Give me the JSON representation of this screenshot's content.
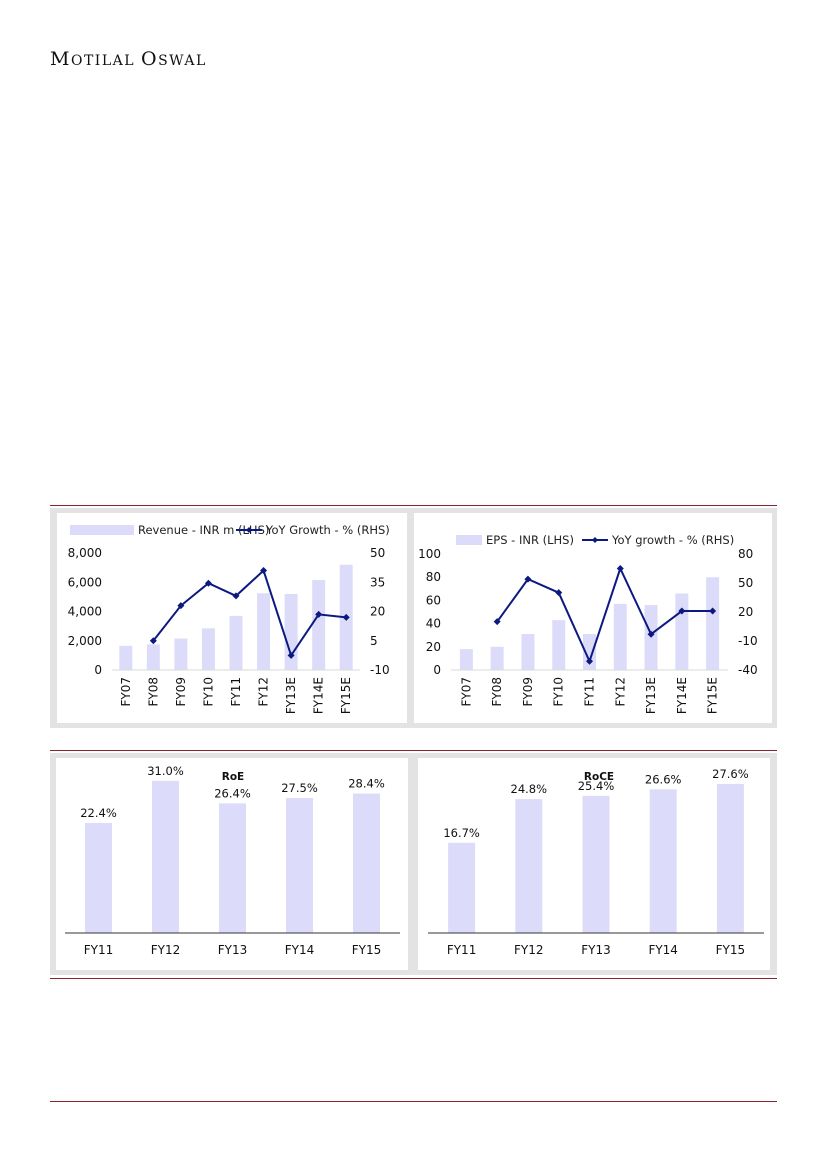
{
  "header": {
    "brand_initial_1": "M",
    "brand_rest_1": "OTILAL",
    "brand_initial_2": "O",
    "brand_rest_2": "SWAL"
  },
  "colors": {
    "bar": "#dcdcfa",
    "line": "#0c1a80",
    "rule": "#8a2330",
    "panel_bg": "#e3e3e3"
  },
  "chart_data": [
    {
      "type": "bar",
      "categories": [
        "FY07",
        "FY08",
        "FY09",
        "FY10",
        "FY11",
        "FY12",
        "FY13E",
        "FY14E",
        "FY15E"
      ],
      "series": [
        {
          "name": "Revenue - INR m (LHS)",
          "type": "bar",
          "axis": "left",
          "values": [
            1650,
            1750,
            2150,
            2850,
            3700,
            5250,
            5200,
            6150,
            7200
          ]
        },
        {
          "name": "YoY Growth - % (RHS)",
          "type": "line",
          "axis": "right",
          "values": [
            null,
            5,
            23,
            34.5,
            28,
            41,
            -2.5,
            18.5,
            17
          ]
        }
      ],
      "y_left": {
        "min": 0,
        "max": 8000,
        "ticks": [
          "0",
          "2,000",
          "4,000",
          "6,000",
          "8,000"
        ]
      },
      "y_right": {
        "min": -10,
        "max": 50,
        "ticks": [
          "-10",
          "5",
          "20",
          "35",
          "50"
        ]
      },
      "legend": "top"
    },
    {
      "type": "bar",
      "categories": [
        "FY07",
        "FY08",
        "FY09",
        "FY10",
        "FY11",
        "FY12",
        "FY13E",
        "FY14E",
        "FY15E"
      ],
      "series": [
        {
          "name": "EPS - INR (LHS)",
          "type": "bar",
          "axis": "left",
          "values": [
            18,
            20,
            31,
            43,
            31,
            57,
            56,
            66,
            80
          ]
        },
        {
          "name": "YoY growth - % (RHS)",
          "type": "line",
          "axis": "right",
          "values": [
            null,
            10,
            54,
            40,
            -31,
            65,
            -3,
            21,
            21
          ]
        }
      ],
      "y_left": {
        "min": 0,
        "max": 100,
        "ticks": [
          "0",
          "20",
          "40",
          "60",
          "80",
          "100"
        ]
      },
      "y_right": {
        "min": -40,
        "max": 80,
        "ticks": [
          "-40",
          "-10",
          "20",
          "50",
          "80"
        ]
      },
      "legend": "top"
    },
    {
      "type": "bar",
      "title": "RoE",
      "categories": [
        "FY11",
        "FY12",
        "FY13",
        "FY14",
        "FY15"
      ],
      "values": [
        22.4,
        31.0,
        26.4,
        27.5,
        28.4
      ],
      "labels": [
        "22.4%",
        "31.0%",
        "26.4%",
        "27.5%",
        "28.4%"
      ],
      "ylim": [
        0,
        33
      ]
    },
    {
      "type": "bar",
      "title": "RoCE",
      "categories": [
        "FY11",
        "FY12",
        "FY13",
        "FY14",
        "FY15"
      ],
      "values": [
        16.7,
        24.8,
        25.4,
        26.6,
        27.6
      ],
      "labels": [
        "16.7%",
        "24.8%",
        "25.4%",
        "26.6%",
        "27.6%"
      ],
      "ylim": [
        0,
        30
      ]
    }
  ]
}
